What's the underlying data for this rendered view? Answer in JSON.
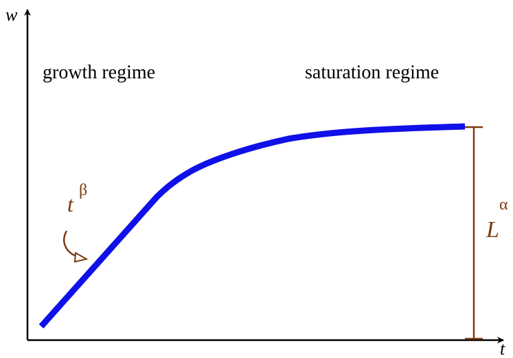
{
  "axes": {
    "y_label": "w",
    "x_label": "t"
  },
  "regions": [
    "growth regime",
    "saturation regime"
  ],
  "annotations": {
    "growth": {
      "base": "t",
      "sup": "β"
    },
    "saturation": {
      "base": "L",
      "sup": "α"
    }
  }
}
